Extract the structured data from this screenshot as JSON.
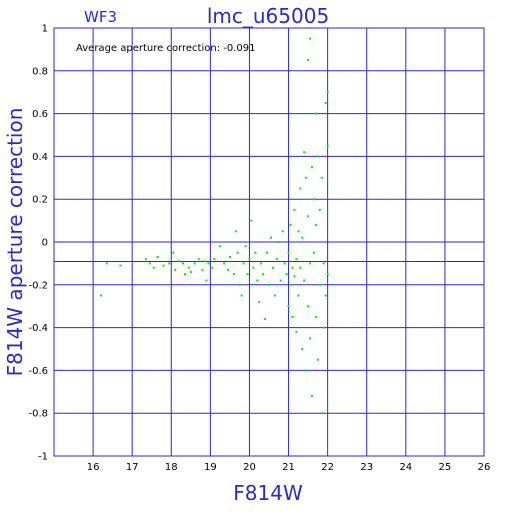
{
  "chart_data": {
    "type": "scatter",
    "title": "lmc_u65005",
    "corner_label": "WF3",
    "annotation": "Average aperture correction: -0.091",
    "xlabel": "F814W",
    "ylabel": "F814W aperture correction",
    "xlim": [
      15,
      26
    ],
    "ylim": [
      -1,
      1
    ],
    "x_ticks": [
      "16",
      "17",
      "18",
      "19",
      "20",
      "21",
      "22",
      "23",
      "24",
      "25",
      "26"
    ],
    "y_ticks": [
      "1",
      "0.8",
      "0.6",
      "0.4",
      "0.2",
      "0",
      "-0.2",
      "-0.4",
      "-0.6",
      "-0.8",
      "-1"
    ],
    "grid": true,
    "reference_line": {
      "y": -0.091,
      "color": "#cc0000"
    },
    "colors": {
      "axes": "#2a2acc",
      "points": "#00ee00",
      "reference": "#cc0000"
    },
    "series": [
      {
        "points": [
          [
            16.2,
            -0.25
          ],
          [
            16.35,
            -0.1
          ],
          [
            16.7,
            -0.11
          ],
          [
            17.35,
            -0.08
          ],
          [
            17.45,
            -0.1
          ],
          [
            17.55,
            -0.12
          ],
          [
            17.65,
            -0.07
          ],
          [
            17.8,
            -0.11
          ],
          [
            17.95,
            -0.1
          ],
          [
            18.05,
            -0.05
          ],
          [
            18.1,
            -0.13
          ],
          [
            18.2,
            -0.09
          ],
          [
            18.3,
            -0.1
          ],
          [
            18.35,
            -0.15
          ],
          [
            18.45,
            -0.12
          ],
          [
            18.5,
            -0.14
          ],
          [
            18.6,
            -0.1
          ],
          [
            18.7,
            -0.08
          ],
          [
            18.8,
            -0.13
          ],
          [
            18.85,
            -0.09
          ],
          [
            18.9,
            -0.18
          ],
          [
            18.95,
            -0.1
          ],
          [
            19.05,
            -0.12
          ],
          [
            19.1,
            -0.08
          ],
          [
            19.25,
            -0.02
          ],
          [
            19.35,
            -0.1
          ],
          [
            19.45,
            -0.13
          ],
          [
            19.5,
            -0.07
          ],
          [
            19.6,
            -0.15
          ],
          [
            19.65,
            0.05
          ],
          [
            19.7,
            -0.05
          ],
          [
            19.75,
            -0.2
          ],
          [
            19.8,
            -0.25
          ],
          [
            19.85,
            -0.1
          ],
          [
            19.9,
            -0.02
          ],
          [
            19.95,
            -0.15
          ],
          [
            20.0,
            -0.08
          ],
          [
            20.05,
            0.1
          ],
          [
            20.1,
            -0.12
          ],
          [
            20.15,
            -0.05
          ],
          [
            20.2,
            -0.18
          ],
          [
            20.25,
            -0.28
          ],
          [
            20.3,
            -0.1
          ],
          [
            20.35,
            -0.15
          ],
          [
            20.4,
            -0.36
          ],
          [
            20.45,
            -0.05
          ],
          [
            20.5,
            -0.2
          ],
          [
            20.55,
            0.02
          ],
          [
            20.6,
            -0.12
          ],
          [
            20.65,
            -0.25
          ],
          [
            20.7,
            -0.08
          ],
          [
            20.75,
            0.0
          ],
          [
            20.8,
            -0.18
          ],
          [
            20.85,
            0.05
          ],
          [
            20.9,
            -0.1
          ],
          [
            20.95,
            -0.15
          ],
          [
            21.0,
            -0.3
          ],
          [
            21.0,
            -0.05
          ],
          [
            21.05,
            0.08
          ],
          [
            21.05,
            -0.2
          ],
          [
            21.1,
            -0.12
          ],
          [
            21.1,
            -0.35
          ],
          [
            21.15,
            0.15
          ],
          [
            21.15,
            -0.16
          ],
          [
            21.2,
            -0.08
          ],
          [
            21.2,
            -0.42
          ],
          [
            21.25,
            0.05
          ],
          [
            21.25,
            -0.25
          ],
          [
            21.3,
            0.25
          ],
          [
            21.3,
            -0.12
          ],
          [
            21.35,
            -0.5
          ],
          [
            21.35,
            0.02
          ],
          [
            21.4,
            0.42
          ],
          [
            21.4,
            -0.18
          ],
          [
            21.45,
            0.3
          ],
          [
            21.45,
            -0.6
          ],
          [
            21.5,
            0.85
          ],
          [
            21.5,
            -0.3
          ],
          [
            21.5,
            0.12
          ],
          [
            21.55,
            0.95
          ],
          [
            21.55,
            -0.1
          ],
          [
            21.55,
            -0.45
          ],
          [
            21.6,
            0.35
          ],
          [
            21.6,
            -0.72
          ],
          [
            21.65,
            0.2
          ],
          [
            21.65,
            -0.05
          ],
          [
            21.7,
            0.6
          ],
          [
            21.7,
            -0.35
          ],
          [
            21.7,
            0.08
          ],
          [
            21.75,
            -0.55
          ],
          [
            21.75,
            0.4
          ],
          [
            21.8,
            -0.2
          ],
          [
            21.8,
            0.15
          ],
          [
            21.85,
            -0.8
          ],
          [
            21.85,
            0.3
          ],
          [
            21.9,
            -0.4
          ],
          [
            21.9,
            -0.1
          ],
          [
            21.95,
            0.65
          ],
          [
            21.95,
            -0.25
          ],
          [
            22.0,
            0.7
          ],
          [
            22.0,
            -0.15
          ],
          [
            22.0,
            0.45
          ]
        ]
      }
    ]
  }
}
